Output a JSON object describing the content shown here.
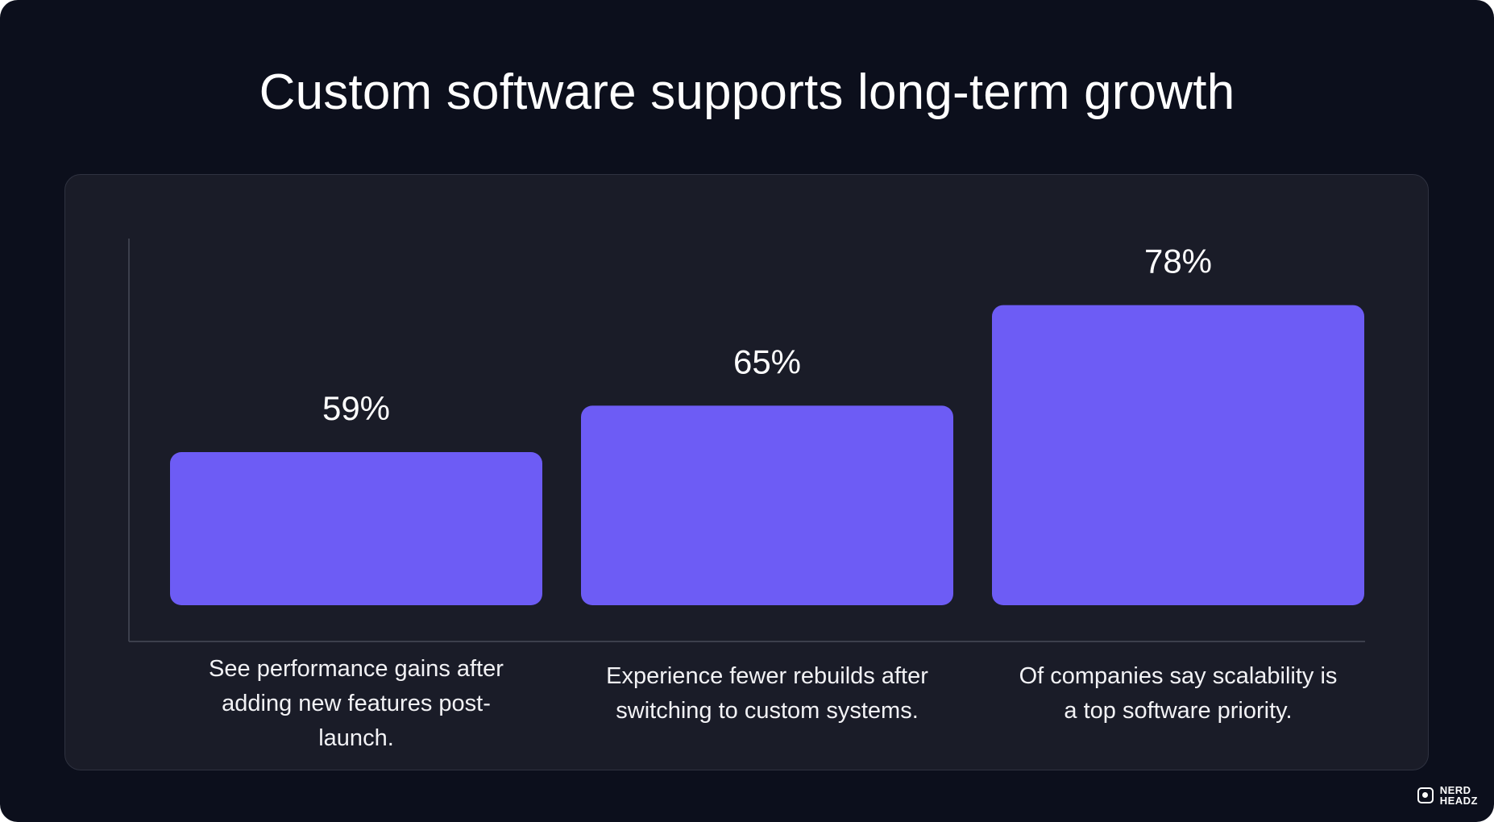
{
  "title": "Custom software supports long-term growth",
  "chart_data": {
    "type": "bar",
    "categories": [
      "See performance gains after adding new features post-launch.",
      "Experience fewer rebuilds after switching to custom systems.",
      "Of companies say scalability is a top software priority."
    ],
    "values": [
      59,
      65,
      78
    ],
    "value_labels": [
      "59%",
      "65%",
      "78%"
    ],
    "ylim": [
      0,
      100
    ],
    "grid": false,
    "legend": "none"
  },
  "colors": {
    "background": "#0c0f1c",
    "panel": "#1a1c28",
    "bar": "#6d5cf5",
    "axis": "#3c3f4c",
    "text": "#ffffff"
  },
  "logo": {
    "line1": "NERD",
    "line2": "HEADZ",
    "icon": "nerdheadz-logo-icon"
  }
}
